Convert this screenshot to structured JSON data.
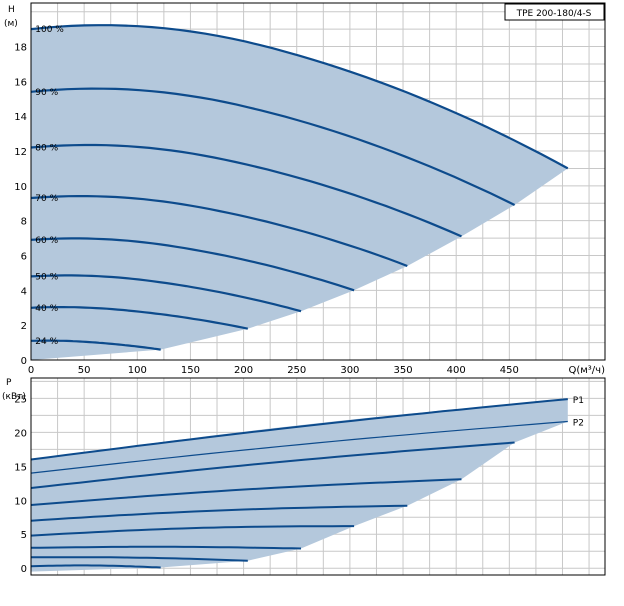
{
  "chart_data": [
    {
      "type": "line",
      "model_label": "TPE 200-180/4-S",
      "ylabel_top": "H",
      "ylabel_unit": "(м)",
      "xlabel": "Q(м³/ч)",
      "xlim": [
        0,
        540
      ],
      "ylim": [
        0,
        20.5
      ],
      "xticks": [
        0,
        50,
        100,
        150,
        200,
        250,
        300,
        350,
        400,
        450
      ],
      "yticks": [
        0,
        2,
        4,
        6,
        8,
        10,
        12,
        14,
        16,
        18
      ],
      "grid": true,
      "series": [
        {
          "name": "100 %",
          "shutoff": 19.0,
          "qmax": 505,
          "hend": 11.0
        },
        {
          "name": "90 %",
          "shutoff": 15.4,
          "qmax": 455,
          "hend": 8.9
        },
        {
          "name": "80 %",
          "shutoff": 12.2,
          "qmax": 405,
          "hend": 7.1
        },
        {
          "name": "70 %",
          "shutoff": 9.3,
          "qmax": 354,
          "hend": 5.4
        },
        {
          "name": "60 %",
          "shutoff": 6.9,
          "qmax": 304,
          "hend": 4.0
        },
        {
          "name": "50 %",
          "shutoff": 4.8,
          "qmax": 254,
          "hend": 2.8
        },
        {
          "name": "40 %",
          "shutoff": 3.0,
          "qmax": 204,
          "hend": 1.8
        },
        {
          "name": "24 %",
          "shutoff": 1.1,
          "qmax": 122,
          "hend": 0.6
        }
      ]
    },
    {
      "type": "line",
      "ylabel_top": "P",
      "ylabel_unit": "(кВт)",
      "xlim": [
        0,
        540
      ],
      "ylim": [
        -1,
        28
      ],
      "yticks": [
        0,
        5,
        10,
        15,
        20,
        25
      ],
      "grid": true,
      "envelope_upper": {
        "x": [
          0,
          505
        ],
        "y": [
          16.0,
          24.9
        ]
      },
      "series": [
        {
          "name": "P1",
          "qmax": 505,
          "p0": 16.0,
          "pend": 24.9
        },
        {
          "name": "P2",
          "qmax": 505,
          "p0": 14.0,
          "pend": 21.6
        },
        {
          "name": "",
          "qmax": 455,
          "p0": 11.8,
          "pend": 18.5
        },
        {
          "name": "",
          "qmax": 405,
          "p0": 9.3,
          "pend": 13.1
        },
        {
          "name": "",
          "qmax": 354,
          "p0": 7.0,
          "pend": 9.2
        },
        {
          "name": "",
          "qmax": 304,
          "p0": 4.8,
          "pend": 6.2
        },
        {
          "name": "",
          "qmax": 254,
          "p0": 3.0,
          "pend": 2.9
        },
        {
          "name": "",
          "qmax": 204,
          "p0": 1.6,
          "pend": 1.1
        },
        {
          "name": "",
          "qmax": 122,
          "p0": 0.3,
          "pend": 0.1
        }
      ],
      "envelope_lower": {
        "x": [
          0,
          122,
          204,
          254,
          304,
          354,
          405,
          455,
          505
        ],
        "y": [
          -0.5,
          0.1,
          1.1,
          2.9,
          6.2,
          9.2,
          13.1,
          18.5,
          21.6
        ]
      }
    }
  ]
}
